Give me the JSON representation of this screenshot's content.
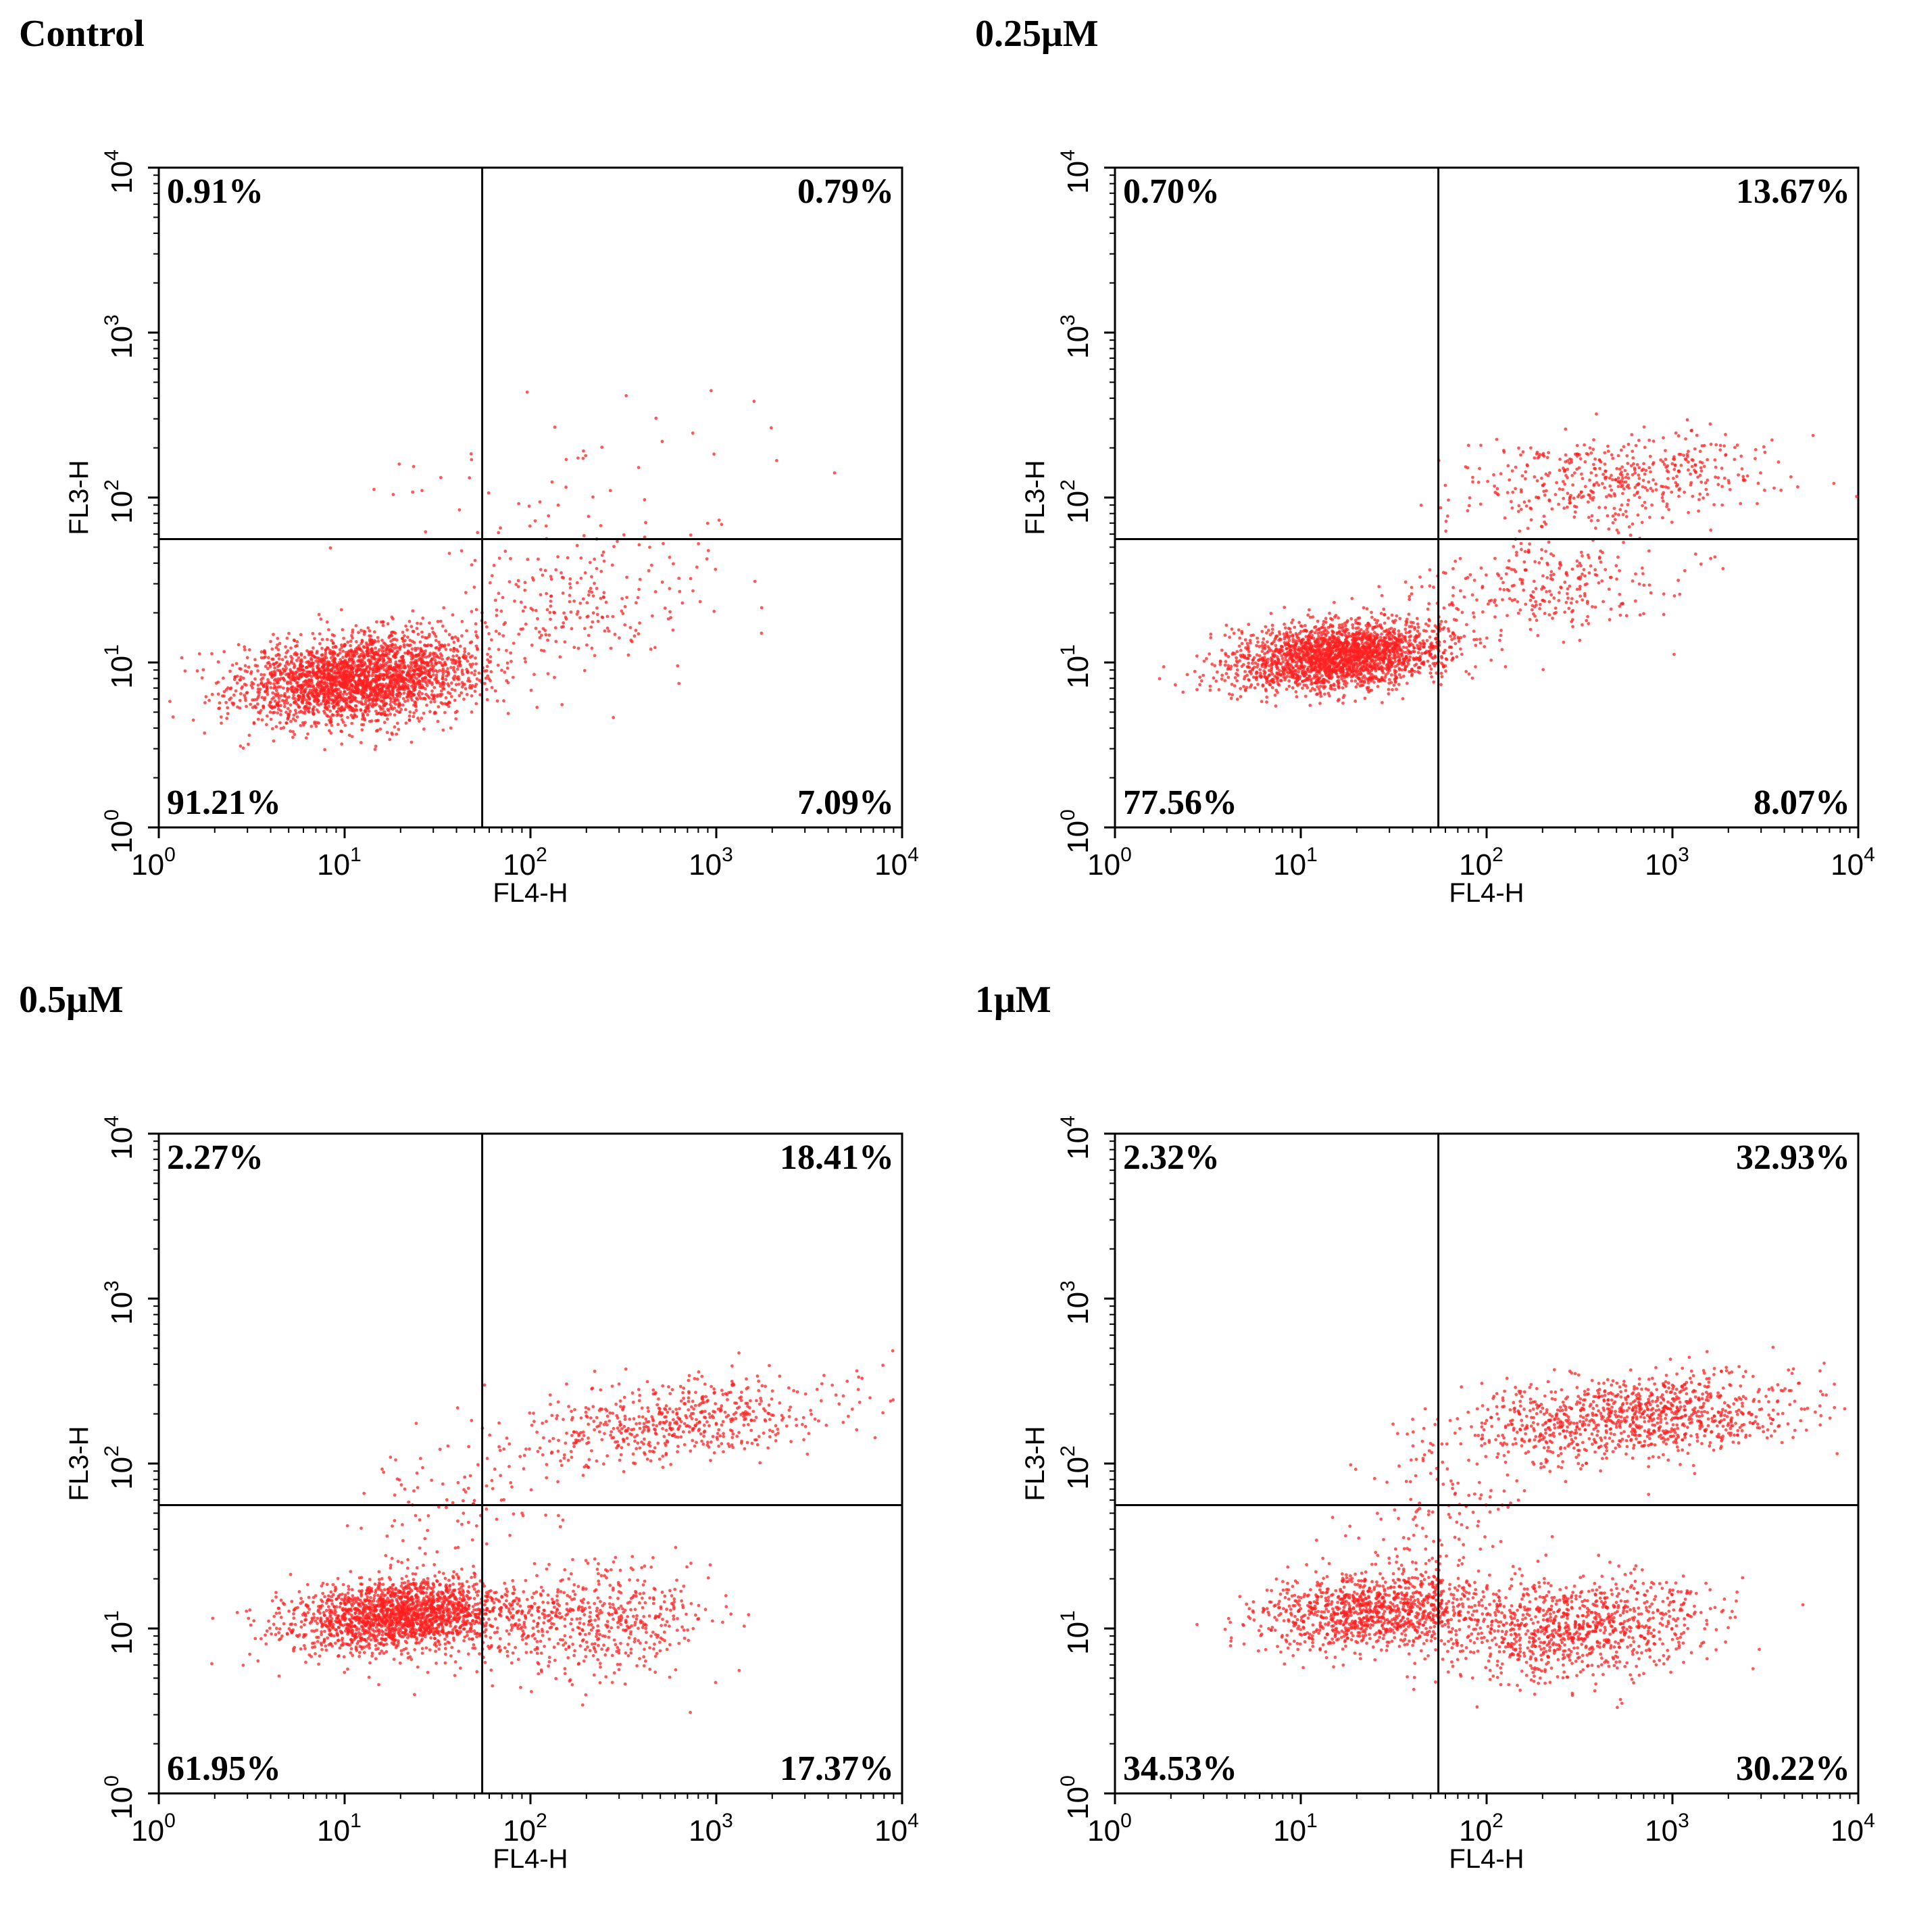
{
  "chart_data": [
    {
      "type": "scatter",
      "title": "Control",
      "xlabel": "FL4-H",
      "ylabel": "FL3-H",
      "xscale": "log",
      "yscale": "log",
      "xlim": [
        1,
        10000
      ],
      "ylim": [
        1,
        10000
      ],
      "x_ticks": [
        "10^0",
        "10^1",
        "10^2",
        "10^3",
        "10^4"
      ],
      "y_ticks": [
        "10^0",
        "10^1",
        "10^2",
        "10^3",
        "10^4"
      ],
      "gate": {
        "x": 55,
        "y": 56
      },
      "quadrants": {
        "upper_left": "0.91%",
        "upper_right": "0.79%",
        "lower_left": "91.21%",
        "lower_right": "7.09%"
      },
      "point_color": "#ff2020",
      "clusters": [
        {
          "center": [
            12,
            8
          ],
          "spread": [
            0.32,
            0.13
          ],
          "count": 2600
        },
        {
          "center": [
            200,
            22
          ],
          "spread": [
            0.35,
            0.2
          ],
          "count": 230
        },
        {
          "center": [
            150,
            120
          ],
          "spread": [
            0.5,
            0.25
          ],
          "count": 60
        }
      ]
    },
    {
      "type": "scatter",
      "title": "0.25μM",
      "xlabel": "FL4-H",
      "ylabel": "FL3-H",
      "xscale": "log",
      "yscale": "log",
      "xlim": [
        1,
        10000
      ],
      "ylim": [
        1,
        10000
      ],
      "x_ticks": [
        "10^0",
        "10^1",
        "10^2",
        "10^3",
        "10^4"
      ],
      "y_ticks": [
        "10^0",
        "10^1",
        "10^2",
        "10^3",
        "10^4"
      ],
      "gate": {
        "x": 55,
        "y": 56
      },
      "quadrants": {
        "upper_left": "0.70%",
        "upper_right": "13.67%",
        "lower_left": "77.56%",
        "lower_right": "8.07%"
      },
      "point_color": "#ff2020",
      "clusters": [
        {
          "center": [
            16,
            11
          ],
          "spread": [
            0.28,
            0.1
          ],
          "count": 2300
        },
        {
          "center": [
            500,
            130
          ],
          "spread": [
            0.4,
            0.14
          ],
          "count": 480
        },
        {
          "center": [
            200,
            28
          ],
          "spread": [
            0.35,
            0.15
          ],
          "count": 280
        }
      ]
    },
    {
      "type": "scatter",
      "title": "0.5μM",
      "xlabel": "FL4-H",
      "ylabel": "FL3-H",
      "xscale": "log",
      "yscale": "log",
      "xlim": [
        1,
        10000
      ],
      "ylim": [
        1,
        10000
      ],
      "x_ticks": [
        "10^0",
        "10^1",
        "10^2",
        "10^3",
        "10^4"
      ],
      "y_ticks": [
        "10^0",
        "10^1",
        "10^2",
        "10^3",
        "10^4"
      ],
      "gate": {
        "x": 55,
        "y": 56
      },
      "quadrants": {
        "upper_left": "2.27%",
        "upper_right": "18.41%",
        "lower_left": "61.95%",
        "lower_right": "17.37%"
      },
      "point_color": "#ff2020",
      "clusters": [
        {
          "center": [
            20,
            12
          ],
          "spread": [
            0.3,
            0.11
          ],
          "count": 1900
        },
        {
          "center": [
            200,
            11
          ],
          "spread": [
            0.32,
            0.16
          ],
          "count": 560
        },
        {
          "center": [
            600,
            180
          ],
          "spread": [
            0.45,
            0.13
          ],
          "count": 580
        },
        {
          "center": [
            40,
            60
          ],
          "spread": [
            0.3,
            0.22
          ],
          "count": 90
        }
      ]
    },
    {
      "type": "scatter",
      "title": "1μM",
      "xlabel": "FL4-H",
      "ylabel": "FL3-H",
      "xscale": "log",
      "yscale": "log",
      "xlim": [
        1,
        10000
      ],
      "ylim": [
        1,
        10000
      ],
      "x_ticks": [
        "10^0",
        "10^1",
        "10^2",
        "10^3",
        "10^4"
      ],
      "y_ticks": [
        "10^0",
        "10^1",
        "10^2",
        "10^3",
        "10^4"
      ],
      "gate": {
        "x": 55,
        "y": 56
      },
      "quadrants": {
        "upper_left": "2.32%",
        "upper_right": "32.93%",
        "lower_left": "34.53%",
        "lower_right": "30.22%"
      },
      "point_color": "#ff2020",
      "clusters": [
        {
          "center": [
            25,
            13
          ],
          "spread": [
            0.3,
            0.12
          ],
          "count": 1100
        },
        {
          "center": [
            300,
            10
          ],
          "spread": [
            0.35,
            0.15
          ],
          "count": 950
        },
        {
          "center": [
            600,
            190
          ],
          "spread": [
            0.45,
            0.13
          ],
          "count": 1050
        },
        {
          "center": [
            50,
            50
          ],
          "spread": [
            0.25,
            0.25
          ],
          "count": 120
        }
      ]
    }
  ]
}
